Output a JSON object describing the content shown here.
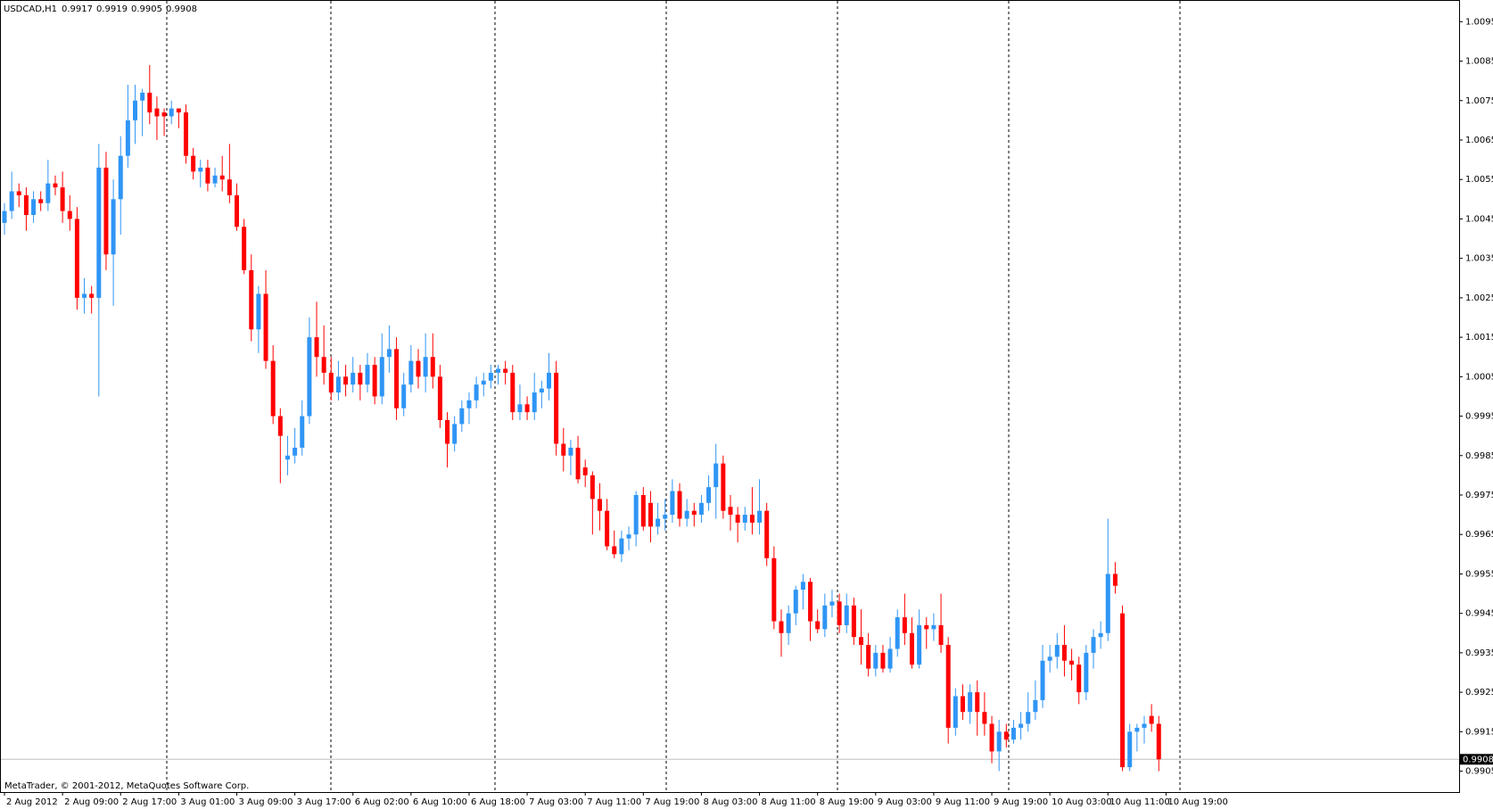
{
  "chart_data": {
    "type": "candlestick",
    "title": "USDCAD,H1",
    "footer": "MetaTrader, © 2001-2012, MetaQuotes Software Corp.",
    "up_color": "#2f95f5",
    "down_color": "#ff0000",
    "ylim": [
      0.98997,
      1.01005
    ],
    "yticks": [
      1.0095,
      1.0085,
      1.0075,
      1.0065,
      1.0055,
      1.0045,
      1.0035,
      1.0025,
      1.0015,
      1.0005,
      0.9995,
      0.9985,
      0.9975,
      0.9965,
      0.9955,
      0.9945,
      0.9935,
      0.9925,
      0.9915,
      0.9905
    ],
    "x_labels": [
      "2 Aug 2012",
      "2 Aug 09:00",
      "2 Aug 17:00",
      "3 Aug 01:00",
      "3 Aug 09:00",
      "3 Aug 17:00",
      "6 Aug 02:00",
      "6 Aug 10:00",
      "6 Aug 18:00",
      "7 Aug 03:00",
      "7 Aug 11:00",
      "7 Aug 19:00",
      "8 Aug 03:00",
      "8 Aug 11:00",
      "8 Aug 19:00",
      "9 Aug 03:00",
      "9 Aug 11:00",
      "9 Aug 19:00",
      "10 Aug 03:00",
      "10 Aug 11:00",
      "10 Aug 19:00"
    ],
    "ohlc": [
      [
        1.0044,
        1.0049,
        1.0041,
        1.0047
      ],
      [
        1.0047,
        1.0057,
        1.0045,
        1.0052
      ],
      [
        1.0052,
        1.0054,
        1.0048,
        1.0051
      ],
      [
        1.0051,
        1.0053,
        1.0042,
        1.0046
      ],
      [
        1.0046,
        1.0052,
        1.0044,
        1.005
      ],
      [
        1.005,
        1.0052,
        1.0047,
        1.0049
      ],
      [
        1.0049,
        1.006,
        1.0047,
        1.0054
      ],
      [
        1.0054,
        1.0056,
        1.0051,
        1.0053
      ],
      [
        1.0053,
        1.0057,
        1.0044,
        1.0047
      ],
      [
        1.0047,
        1.0051,
        1.0042,
        1.0045
      ],
      [
        1.0045,
        1.0048,
        1.0022,
        1.0025
      ],
      [
        1.0025,
        1.003,
        1.0021,
        1.0026
      ],
      [
        1.0026,
        1.0028,
        1.0021,
        1.0025
      ],
      [
        1.0025,
        1.0064,
        1.0,
        1.0058
      ],
      [
        1.0058,
        1.0062,
        1.0032,
        1.0036
      ],
      [
        1.0036,
        1.0055,
        1.0023,
        1.005
      ],
      [
        1.005,
        1.0066,
        1.0041,
        1.0061
      ],
      [
        1.0061,
        1.0079,
        1.0058,
        1.007
      ],
      [
        1.007,
        1.0079,
        1.0064,
        1.0075
      ],
      [
        1.0075,
        1.0078,
        1.0066,
        1.0077
      ],
      [
        1.0077,
        1.0084,
        1.0069,
        1.0072
      ],
      [
        1.0073,
        1.0076,
        1.0065,
        1.0071
      ],
      [
        1.0072,
        1.0073,
        1.0066,
        1.0071
      ],
      [
        1.0071,
        1.0075,
        1.0069,
        1.0073
      ],
      [
        1.0073,
        1.0073,
        1.0068,
        1.0072
      ],
      [
        1.0072,
        1.0074,
        1.0059,
        1.0061
      ],
      [
        1.0061,
        1.0063,
        1.0055,
        1.0057
      ],
      [
        1.0057,
        1.006,
        1.0053,
        1.0058
      ],
      [
        1.0058,
        1.006,
        1.0052,
        1.0054
      ],
      [
        1.0054,
        1.0058,
        1.0053,
        1.0056
      ],
      [
        1.0056,
        1.0061,
        1.0052,
        1.0055
      ],
      [
        1.0055,
        1.0064,
        1.0049,
        1.0051
      ],
      [
        1.0051,
        1.0054,
        1.0042,
        1.0043
      ],
      [
        1.0043,
        1.0045,
        1.0031,
        1.0032
      ],
      [
        1.0032,
        1.0036,
        1.0014,
        1.0017
      ],
      [
        1.0017,
        1.0028,
        1.0011,
        1.0026
      ],
      [
        1.0026,
        1.0032,
        1.0007,
        1.0009
      ],
      [
        1.0009,
        1.0013,
        0.9993,
        0.9995
      ],
      [
        0.9995,
        0.9997,
        0.9978,
        0.999
      ],
      [
        0.9984,
        0.999,
        0.998,
        0.9985
      ],
      [
        0.9985,
        0.9992,
        0.9983,
        0.9987
      ],
      [
        0.9987,
        0.9999,
        0.9985,
        0.9995
      ],
      [
        0.9995,
        1.002,
        0.9993,
        1.0015
      ],
      [
        1.0015,
        1.0024,
        1.0005,
        1.001
      ],
      [
        1.001,
        1.0018,
        1.0003,
        1.0006
      ],
      [
        1.0006,
        1.001,
        0.9999,
        1.0001
      ],
      [
        1.0001,
        1.0009,
        0.9999,
        1.0005
      ],
      [
        1.0005,
        1.0008,
        1.0,
        1.0003
      ],
      [
        1.0003,
        1.001,
        1.0001,
        1.0006
      ],
      [
        1.0006,
        1.0008,
        0.9999,
        1.0003
      ],
      [
        1.0003,
        1.0011,
        1.0001,
        1.0008
      ],
      [
        1.0008,
        1.001,
        0.9998,
        1.0
      ],
      [
        1.0,
        1.0016,
        0.9998,
        1.001
      ],
      [
        1.001,
        1.0018,
        1.0006,
        1.0012
      ],
      [
        1.0012,
        1.0015,
        0.9994,
        0.9997
      ],
      [
        0.9997,
        1.0006,
        0.9995,
        1.0003
      ],
      [
        1.0003,
        1.0013,
        1.0001,
        1.0009
      ],
      [
        1.0009,
        1.0012,
        1.0002,
        1.0005
      ],
      [
        1.0005,
        1.0016,
        1.0001,
        1.001
      ],
      [
        1.001,
        1.0016,
        1.0002,
        1.0005
      ],
      [
        1.0005,
        1.0008,
        0.9992,
        0.9994
      ],
      [
        0.9994,
        0.9996,
        0.9982,
        0.9988
      ],
      [
        0.9988,
        0.9995,
        0.9986,
        0.9993
      ],
      [
        0.9993,
        0.9999,
        0.9991,
        0.9997
      ],
      [
        0.9997,
        1.0001,
        0.9993,
        0.9999
      ],
      [
        0.9999,
        1.0005,
        0.9997,
        1.0003
      ],
      [
        1.0003,
        1.0006,
        1.0,
        1.0004
      ],
      [
        1.0004,
        1.0008,
        1.0002,
        1.0006
      ],
      [
        1.0006,
        1.0008,
        1.0003,
        1.0007
      ],
      [
        1.0007,
        1.0009,
        1.0003,
        1.0006
      ],
      [
        1.0006,
        1.0008,
        0.9994,
        0.9996
      ],
      [
        0.9996,
        1.0003,
        0.9994,
        0.9998
      ],
      [
        0.9998,
        1.0,
        0.9994,
        0.9996
      ],
      [
        0.9996,
        1.0006,
        0.9994,
        1.0001
      ],
      [
        1.0001,
        1.0004,
        0.9997,
        1.0002
      ],
      [
        1.0002,
        1.0011,
        0.9999,
        1.0006
      ],
      [
        1.0006,
        1.0009,
        0.9985,
        0.9988
      ],
      [
        0.9988,
        0.9992,
        0.9981,
        0.9985
      ],
      [
        0.9985,
        0.9989,
        0.998,
        0.9987
      ],
      [
        0.9987,
        0.999,
        0.9978,
        0.9979
      ],
      [
        0.9982,
        0.9984,
        0.9977,
        0.998
      ],
      [
        0.998,
        0.9981,
        0.9965,
        0.9974
      ],
      [
        0.9974,
        0.9978,
        0.9966,
        0.9971
      ],
      [
        0.9971,
        0.9974,
        0.9961,
        0.9962
      ],
      [
        0.9962,
        0.9966,
        0.9959,
        0.996
      ],
      [
        0.996,
        0.9966,
        0.9958,
        0.9964
      ],
      [
        0.9964,
        0.9967,
        0.9961,
        0.9965
      ],
      [
        0.9965,
        0.9976,
        0.9962,
        0.9975
      ],
      [
        0.9975,
        0.9977,
        0.9966,
        0.9967
      ],
      [
        0.9973,
        0.9976,
        0.9963,
        0.9967
      ],
      [
        0.9967,
        0.9973,
        0.9965,
        0.9969
      ],
      [
        0.9969,
        0.9974,
        0.9966,
        0.997
      ],
      [
        0.997,
        0.9979,
        0.9968,
        0.9976
      ],
      [
        0.9976,
        0.9978,
        0.9967,
        0.9969
      ],
      [
        0.9969,
        0.9974,
        0.9967,
        0.9971
      ],
      [
        0.9971,
        0.9973,
        0.9967,
        0.997
      ],
      [
        0.997,
        0.9975,
        0.9968,
        0.9973
      ],
      [
        0.9973,
        0.998,
        0.9971,
        0.9977
      ],
      [
        0.9977,
        0.9988,
        0.9969,
        0.9983
      ],
      [
        0.9983,
        0.9985,
        0.9969,
        0.9971
      ],
      [
        0.9972,
        0.9975,
        0.9966,
        0.997
      ],
      [
        0.997,
        0.9972,
        0.9963,
        0.9968
      ],
      [
        0.9968,
        0.9972,
        0.9966,
        0.997
      ],
      [
        0.997,
        0.9977,
        0.9965,
        0.9968
      ],
      [
        0.9968,
        0.9979,
        0.9965,
        0.9971
      ],
      [
        0.9971,
        0.9973,
        0.9957,
        0.9959
      ],
      [
        0.9959,
        0.9962,
        0.9941,
        0.9943
      ],
      [
        0.9943,
        0.9946,
        0.9934,
        0.994
      ],
      [
        0.994,
        0.9947,
        0.9937,
        0.9945
      ],
      [
        0.9945,
        0.9952,
        0.9942,
        0.9951
      ],
      [
        0.9951,
        0.9955,
        0.9946,
        0.9953
      ],
      [
        0.9953,
        0.9954,
        0.9938,
        0.9943
      ],
      [
        0.9943,
        0.9946,
        0.994,
        0.9941
      ],
      [
        0.9941,
        0.995,
        0.9939,
        0.9947
      ],
      [
        0.9947,
        0.9951,
        0.9944,
        0.9948
      ],
      [
        0.9948,
        0.995,
        0.994,
        0.9942
      ],
      [
        0.9942,
        0.995,
        0.994,
        0.9947
      ],
      [
        0.9947,
        0.9949,
        0.9937,
        0.9939
      ],
      [
        0.9939,
        0.9946,
        0.9932,
        0.9937
      ],
      [
        0.9937,
        0.994,
        0.9929,
        0.9931
      ],
      [
        0.9931,
        0.9937,
        0.9929,
        0.9935
      ],
      [
        0.9935,
        0.9937,
        0.993,
        0.9931
      ],
      [
        0.9931,
        0.9939,
        0.993,
        0.9936
      ],
      [
        0.9936,
        0.9946,
        0.9934,
        0.9944
      ],
      [
        0.9944,
        0.995,
        0.9937,
        0.994
      ],
      [
        0.994,
        0.9944,
        0.9931,
        0.9932
      ],
      [
        0.9932,
        0.9946,
        0.9931,
        0.9942
      ],
      [
        0.9942,
        0.9944,
        0.9936,
        0.9941
      ],
      [
        0.9941,
        0.9945,
        0.9938,
        0.9942
      ],
      [
        0.9942,
        0.995,
        0.9935,
        0.9937
      ],
      [
        0.9937,
        0.9939,
        0.9912,
        0.9916
      ],
      [
        0.9916,
        0.9926,
        0.9914,
        0.9924
      ],
      [
        0.9924,
        0.9927,
        0.9918,
        0.992
      ],
      [
        0.992,
        0.9927,
        0.9917,
        0.9925
      ],
      [
        0.9925,
        0.9928,
        0.9914,
        0.992
      ],
      [
        0.992,
        0.9925,
        0.9914,
        0.9917
      ],
      [
        0.9917,
        0.9919,
        0.9907,
        0.991
      ],
      [
        0.991,
        0.9918,
        0.9905,
        0.9915
      ],
      [
        0.9915,
        0.9917,
        0.9911,
        0.9913
      ],
      [
        0.9913,
        0.9918,
        0.9912,
        0.9916
      ],
      [
        0.9916,
        0.992,
        0.9913,
        0.9917
      ],
      [
        0.9917,
        0.9925,
        0.9915,
        0.992
      ],
      [
        0.992,
        0.9928,
        0.9918,
        0.9923
      ],
      [
        0.9923,
        0.9937,
        0.9921,
        0.9933
      ],
      [
        0.9933,
        0.9937,
        0.993,
        0.9934
      ],
      [
        0.9934,
        0.994,
        0.9931,
        0.9937
      ],
      [
        0.9937,
        0.9942,
        0.9929,
        0.9933
      ],
      [
        0.9933,
        0.9936,
        0.9928,
        0.9932
      ],
      [
        0.9932,
        0.9934,
        0.9922,
        0.9925
      ],
      [
        0.9925,
        0.9937,
        0.9923,
        0.9935
      ],
      [
        0.9935,
        0.9941,
        0.9931,
        0.9939
      ],
      [
        0.9939,
        0.9943,
        0.9936,
        0.994
      ],
      [
        0.994,
        0.9969,
        0.9938,
        0.9955
      ],
      [
        0.9955,
        0.9958,
        0.995,
        0.9952
      ],
      [
        0.9945,
        0.9947,
        0.9905,
        0.9906
      ],
      [
        0.9906,
        0.9917,
        0.9905,
        0.9915
      ],
      [
        0.9915,
        0.9917,
        0.991,
        0.9916
      ],
      [
        0.9916,
        0.9919,
        0.9912,
        0.9917
      ],
      [
        0.9919,
        0.9922,
        0.9915,
        0.9917
      ],
      [
        0.9917,
        0.9919,
        0.9905,
        0.9908
      ]
    ]
  }
}
